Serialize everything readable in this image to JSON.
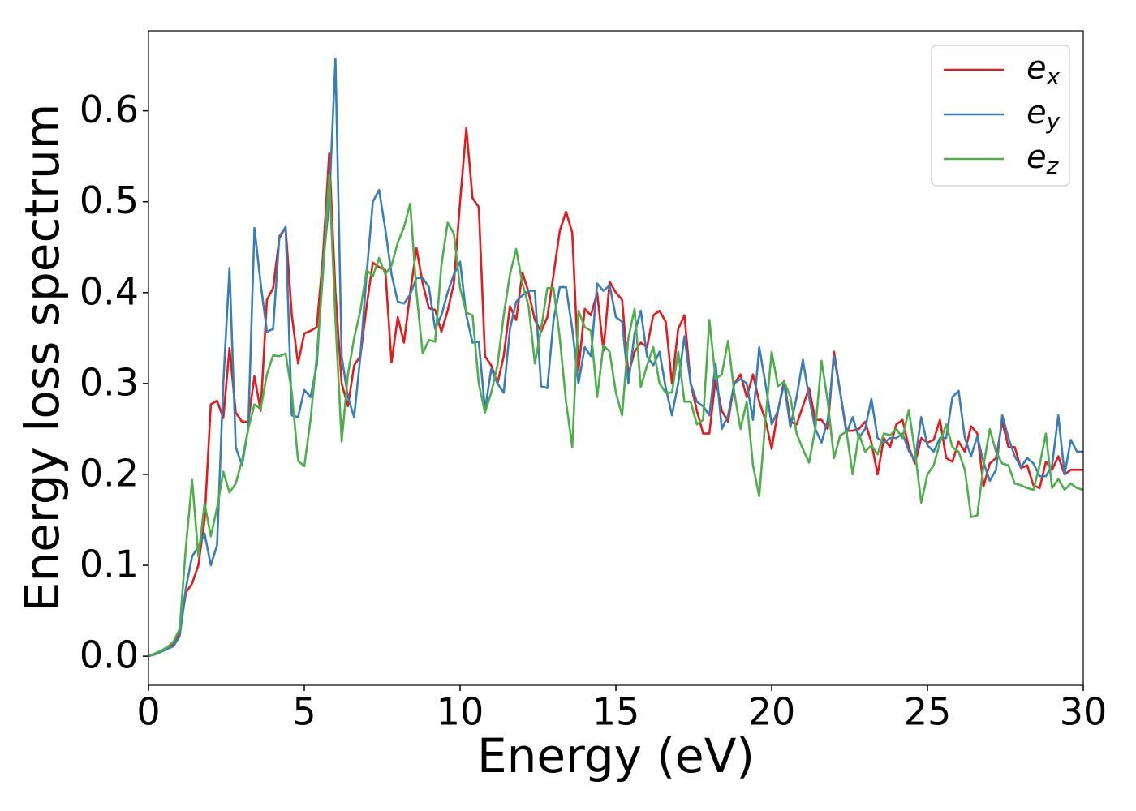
{
  "chart_data": {
    "type": "line",
    "xlabel": "Energy (eV)",
    "ylabel": "Energy loss spectrum",
    "x": [
      0,
      0.2,
      0.4,
      0.6,
      0.8,
      1.0,
      1.2,
      1.4,
      1.6,
      1.8,
      2.0,
      2.2,
      2.4,
      2.6,
      2.8,
      3.0,
      3.2,
      3.4,
      3.6,
      3.8,
      4.0,
      4.2,
      4.4,
      4.6,
      4.8,
      5.0,
      5.2,
      5.4,
      5.6,
      5.8,
      6.0,
      6.2,
      6.4,
      6.6,
      6.8,
      7.0,
      7.2,
      7.4,
      7.6,
      7.8,
      8.0,
      8.2,
      8.4,
      8.6,
      8.8,
      9.0,
      9.2,
      9.4,
      9.6,
      9.8,
      10.0,
      10.2,
      10.4,
      10.6,
      10.8,
      11.0,
      11.2,
      11.4,
      11.6,
      11.8,
      12.0,
      12.2,
      12.4,
      12.6,
      12.8,
      13.0,
      13.2,
      13.4,
      13.6,
      13.8,
      14.0,
      14.2,
      14.4,
      14.6,
      14.8,
      15.0,
      15.2,
      15.4,
      15.6,
      15.8,
      16.0,
      16.2,
      16.4,
      16.6,
      16.8,
      17.0,
      17.2,
      17.4,
      17.6,
      17.8,
      18.0,
      18.2,
      18.4,
      18.6,
      18.8,
      19.0,
      19.2,
      19.4,
      19.6,
      19.8,
      20.0,
      20.2,
      20.4,
      20.6,
      20.8,
      21.0,
      21.2,
      21.4,
      21.6,
      21.8,
      22.0,
      22.2,
      22.4,
      22.6,
      22.8,
      23.0,
      23.2,
      23.4,
      23.6,
      23.8,
      24.0,
      24.2,
      24.4,
      24.6,
      24.8,
      25.0,
      25.2,
      25.4,
      25.6,
      25.8,
      26.0,
      26.2,
      26.4,
      26.6,
      26.8,
      27.0,
      27.2,
      27.4,
      27.6,
      27.8,
      28.0,
      28.2,
      28.4,
      28.6,
      28.8,
      29.0,
      29.2,
      29.4,
      29.6,
      29.8,
      30.0
    ],
    "series": [
      {
        "name": "e_x",
        "color": "#e41a1c",
        "values": [
          0,
          0.002,
          0.005,
          0.008,
          0.013,
          0.025,
          0.07,
          0.08,
          0.1,
          0.15,
          0.277,
          0.281,
          0.262,
          0.339,
          0.268,
          0.258,
          0.258,
          0.308,
          0.27,
          0.392,
          0.405,
          0.46,
          0.472,
          0.375,
          0.322,
          0.355,
          0.358,
          0.362,
          0.44,
          0.553,
          0.4,
          0.3,
          0.275,
          0.32,
          0.33,
          0.385,
          0.433,
          0.428,
          0.425,
          0.323,
          0.373,
          0.345,
          0.4,
          0.449,
          0.41,
          0.383,
          0.381,
          0.357,
          0.38,
          0.41,
          0.5,
          0.581,
          0.504,
          0.494,
          0.33,
          0.32,
          0.3,
          0.33,
          0.385,
          0.37,
          0.422,
          0.4,
          0.37,
          0.357,
          0.373,
          0.42,
          0.468,
          0.489,
          0.466,
          0.315,
          0.382,
          0.375,
          0.4,
          0.336,
          0.412,
          0.4,
          0.392,
          0.31,
          0.335,
          0.345,
          0.34,
          0.375,
          0.38,
          0.368,
          0.3,
          0.36,
          0.375,
          0.3,
          0.27,
          0.245,
          0.245,
          0.305,
          0.27,
          0.258,
          0.3,
          0.31,
          0.285,
          0.31,
          0.28,
          0.26,
          0.228,
          0.27,
          0.303,
          0.258,
          0.255,
          0.275,
          0.295,
          0.26,
          0.26,
          0.25,
          0.335,
          0.29,
          0.248,
          0.248,
          0.25,
          0.258,
          0.235,
          0.2,
          0.24,
          0.23,
          0.255,
          0.26,
          0.23,
          0.212,
          0.24,
          0.235,
          0.238,
          0.26,
          0.218,
          0.214,
          0.236,
          0.225,
          0.253,
          0.245,
          0.187,
          0.212,
          0.218,
          0.258,
          0.23,
          0.23,
          0.207,
          0.21,
          0.188,
          0.185,
          0.214,
          0.205,
          0.22,
          0.2,
          0.205,
          0.205,
          0.205
        ]
      },
      {
        "name": "e_y",
        "color": "#377eb8",
        "values": [
          0,
          0.002,
          0.005,
          0.008,
          0.011,
          0.022,
          0.075,
          0.11,
          0.12,
          0.135,
          0.1,
          0.122,
          0.3,
          0.427,
          0.23,
          0.21,
          0.25,
          0.471,
          0.41,
          0.357,
          0.36,
          0.462,
          0.472,
          0.265,
          0.263,
          0.293,
          0.285,
          0.32,
          0.43,
          0.5,
          0.657,
          0.33,
          0.285,
          0.263,
          0.33,
          0.42,
          0.5,
          0.513,
          0.47,
          0.42,
          0.39,
          0.388,
          0.398,
          0.416,
          0.416,
          0.406,
          0.36,
          0.375,
          0.4,
          0.42,
          0.434,
          0.375,
          0.345,
          0.346,
          0.271,
          0.316,
          0.3,
          0.29,
          0.36,
          0.39,
          0.397,
          0.402,
          0.402,
          0.297,
          0.295,
          0.37,
          0.406,
          0.406,
          0.36,
          0.3,
          0.34,
          0.33,
          0.41,
          0.402,
          0.408,
          0.373,
          0.368,
          0.3,
          0.355,
          0.38,
          0.33,
          0.32,
          0.335,
          0.295,
          0.265,
          0.3,
          0.352,
          0.3,
          0.28,
          0.275,
          0.265,
          0.322,
          0.25,
          0.265,
          0.3,
          0.305,
          0.3,
          0.26,
          0.34,
          0.3,
          0.255,
          0.27,
          0.3,
          0.252,
          0.285,
          0.326,
          0.285,
          0.25,
          0.235,
          0.26,
          0.33,
          0.29,
          0.245,
          0.263,
          0.24,
          0.25,
          0.283,
          0.24,
          0.235,
          0.24,
          0.24,
          0.245,
          0.226,
          0.215,
          0.263,
          0.232,
          0.225,
          0.24,
          0.24,
          0.285,
          0.292,
          0.24,
          0.22,
          0.242,
          0.213,
          0.193,
          0.205,
          0.265,
          0.24,
          0.22,
          0.208,
          0.218,
          0.212,
          0.198,
          0.198,
          0.21,
          0.265,
          0.2,
          0.238,
          0.225,
          0.225
        ]
      },
      {
        "name": "e_z",
        "color": "#4daf4a",
        "values": [
          0,
          0.003,
          0.006,
          0.01,
          0.016,
          0.03,
          0.12,
          0.194,
          0.11,
          0.168,
          0.132,
          0.163,
          0.203,
          0.18,
          0.19,
          0.215,
          0.25,
          0.277,
          0.272,
          0.31,
          0.331,
          0.33,
          0.333,
          0.29,
          0.215,
          0.209,
          0.26,
          0.33,
          0.42,
          0.53,
          0.37,
          0.236,
          0.31,
          0.35,
          0.38,
          0.425,
          0.418,
          0.438,
          0.42,
          0.43,
          0.455,
          0.472,
          0.498,
          0.4,
          0.333,
          0.348,
          0.346,
          0.43,
          0.477,
          0.465,
          0.405,
          0.378,
          0.375,
          0.3,
          0.268,
          0.29,
          0.32,
          0.375,
          0.42,
          0.448,
          0.41,
          0.385,
          0.322,
          0.36,
          0.405,
          0.405,
          0.35,
          0.28,
          0.23,
          0.38,
          0.362,
          0.358,
          0.285,
          0.342,
          0.335,
          0.29,
          0.265,
          0.35,
          0.382,
          0.296,
          0.32,
          0.34,
          0.3,
          0.29,
          0.29,
          0.335,
          0.28,
          0.28,
          0.255,
          0.26,
          0.37,
          0.305,
          0.31,
          0.347,
          0.29,
          0.25,
          0.28,
          0.21,
          0.176,
          0.26,
          0.335,
          0.297,
          0.302,
          0.285,
          0.245,
          0.228,
          0.213,
          0.25,
          0.325,
          0.28,
          0.218,
          0.243,
          0.247,
          0.2,
          0.245,
          0.225,
          0.232,
          0.222,
          0.245,
          0.243,
          0.25,
          0.24,
          0.271,
          0.225,
          0.169,
          0.2,
          0.21,
          0.235,
          0.255,
          0.23,
          0.225,
          0.205,
          0.153,
          0.155,
          0.21,
          0.25,
          0.225,
          0.212,
          0.21,
          0.19,
          0.188,
          0.185,
          0.183,
          0.21,
          0.245,
          0.185,
          0.195,
          0.183,
          0.19,
          0.185,
          0.183
        ]
      }
    ],
    "xlim": [
      0,
      30
    ],
    "xticks": [
      0,
      5,
      10,
      15,
      20,
      25,
      30
    ],
    "ylim": [
      -0.032,
      0.688
    ],
    "yticks": [
      {
        "value": 0,
        "label": "0.0"
      },
      0.1,
      0.2,
      0.3,
      0.4,
      0.5,
      0.6
    ],
    "grid": false,
    "legend": "upper right"
  }
}
